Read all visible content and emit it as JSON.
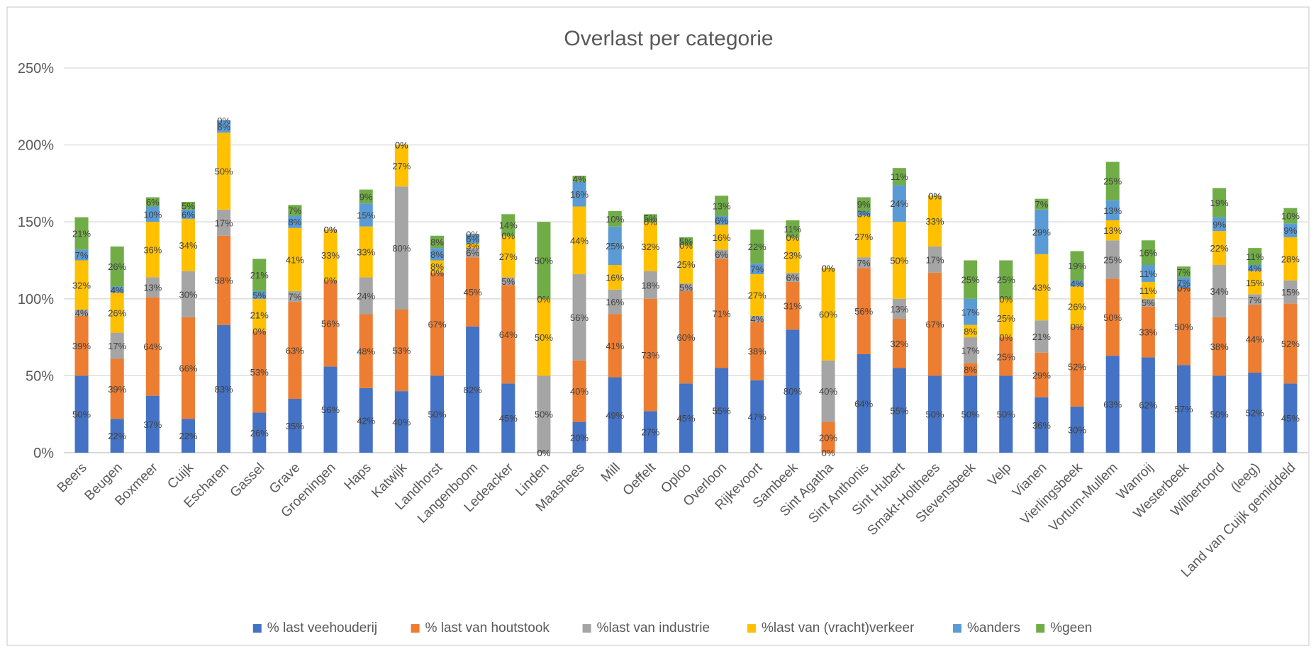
{
  "chart_data": {
    "type": "bar",
    "stacked": true,
    "title": "Overlast per categorie",
    "xlabel": "",
    "ylabel": "",
    "ylim": [
      0,
      250
    ],
    "y_ticks": [
      "0%",
      "50%",
      "100%",
      "150%",
      "200%",
      "250%"
    ],
    "y_tick_values": [
      0,
      50,
      100,
      150,
      200,
      250
    ],
    "grid": true,
    "legend_position": "bottom",
    "categories": [
      "Beers",
      "Beugen",
      "Boxmeer",
      "Cuijk",
      "Escharen",
      "Gassel",
      "Grave",
      "Groeningen",
      "Haps",
      "Katwijk",
      "Landhorst",
      "Langenboom",
      "Ledeacker",
      "Linden",
      "Maashees",
      "Mill",
      "Oeffelt",
      "Oploo",
      "Overloon",
      "Rijkevoort",
      "Sambeek",
      "Sint Agatha",
      "Sint Anthonis",
      "Sint Hubert",
      "Smakt-Holthees",
      "Stevensbeek",
      "Velp",
      "Vianen",
      "Vierlingsbeek",
      "Vortum-Mullem",
      "Wanroij",
      "Westerbeek",
      "Wilbertoord",
      "(leeg)",
      "Land van Cuijk gemiddeld"
    ],
    "series": [
      {
        "name": "% last veehouderij",
        "color": "#4472C4",
        "values": [
          50,
          22,
          37,
          22,
          83,
          26,
          35,
          56,
          42,
          40,
          50,
          82,
          45,
          0,
          20,
          49,
          27,
          45,
          55,
          47,
          80,
          0,
          64,
          55,
          50,
          50,
          50,
          36,
          30,
          63,
          62,
          57,
          50,
          52,
          45
        ]
      },
      {
        "name": "% last van houtstook",
        "color": "#ED7D31",
        "values": [
          39,
          39,
          64,
          66,
          58,
          53,
          63,
          56,
          48,
          53,
          67,
          45,
          64,
          0,
          40,
          41,
          73,
          60,
          71,
          38,
          31,
          20,
          56,
          32,
          67,
          8,
          25,
          29,
          52,
          50,
          33,
          50,
          38,
          44,
          52
        ]
      },
      {
        "name": "%last van industrie",
        "color": "#A5A5A5",
        "values": [
          4,
          17,
          13,
          30,
          17,
          0,
          7,
          0,
          24,
          80,
          0,
          6,
          5,
          50,
          56,
          16,
          18,
          5,
          6,
          4,
          6,
          40,
          7,
          13,
          17,
          17,
          0,
          21,
          0,
          25,
          5,
          0,
          34,
          7,
          15
        ]
      },
      {
        "name": "%last van (vracht)verkeer",
        "color": "#FFC000",
        "values": [
          32,
          26,
          36,
          34,
          50,
          21,
          41,
          33,
          33,
          27,
          8,
          3,
          27,
          50,
          44,
          16,
          32,
          25,
          16,
          27,
          23,
          60,
          27,
          50,
          33,
          8,
          25,
          43,
          26,
          13,
          11,
          0,
          22,
          15,
          28
        ]
      },
      {
        "name": "%anders",
        "color": "#5B9BD5",
        "values": [
          7,
          4,
          10,
          6,
          8,
          5,
          8,
          0,
          15,
          0,
          8,
          6,
          0,
          0,
          16,
          25,
          0,
          0,
          6,
          7,
          0,
          0,
          3,
          24,
          0,
          17,
          0,
          29,
          4,
          13,
          11,
          7,
          9,
          4,
          9
        ]
      },
      {
        "name": "%geen",
        "color": "#70AD47",
        "values": [
          21,
          26,
          6,
          5,
          0,
          21,
          7,
          0,
          9,
          0,
          8,
          0,
          14,
          50,
          4,
          10,
          5,
          5,
          13,
          22,
          11,
          0,
          9,
          11,
          0,
          25,
          25,
          7,
          19,
          25,
          16,
          7,
          19,
          11,
          10
        ]
      }
    ]
  }
}
